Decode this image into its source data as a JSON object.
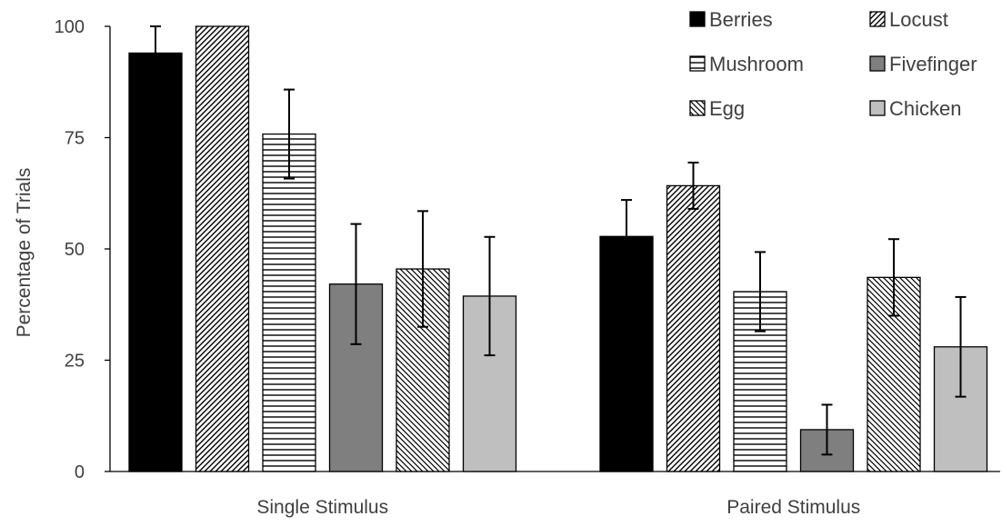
{
  "chart_data": {
    "type": "bar",
    "title": "",
    "xlabel": "",
    "ylabel": "Percentage of Trials",
    "ylim": [
      0,
      100
    ],
    "yticks": [
      0,
      25,
      50,
      75,
      100
    ],
    "grid": false,
    "legend_position": "top-right",
    "categories": [
      "Single Stimulus",
      "Paired Stimulus"
    ],
    "series": [
      {
        "name": "Berries",
        "values": [
          94,
          52.8
        ],
        "error": [
          6,
          8.2
        ],
        "pattern": "solid",
        "color": "#000000"
      },
      {
        "name": "Locust",
        "values": [
          100,
          64.2
        ],
        "error": [
          0,
          5.2
        ],
        "pattern": "diagonal-up",
        "color": "#000000"
      },
      {
        "name": "Mushroom",
        "values": [
          75.8,
          40.4
        ],
        "error": [
          10,
          8.9
        ],
        "pattern": "horizontal",
        "color": "#000000"
      },
      {
        "name": "Fivefinger",
        "values": [
          42.1,
          9.4
        ],
        "error": [
          13.5,
          5.6
        ],
        "pattern": "solid",
        "color": "#7f7f7f"
      },
      {
        "name": "Egg",
        "values": [
          45.5,
          43.6
        ],
        "error": [
          13,
          8.6
        ],
        "pattern": "diagonal-down",
        "color": "#000000"
      },
      {
        "name": "Chicken",
        "values": [
          39.4,
          28
        ],
        "error": [
          13.3,
          11.2
        ],
        "pattern": "solid",
        "color": "#bfbfbf"
      }
    ]
  }
}
